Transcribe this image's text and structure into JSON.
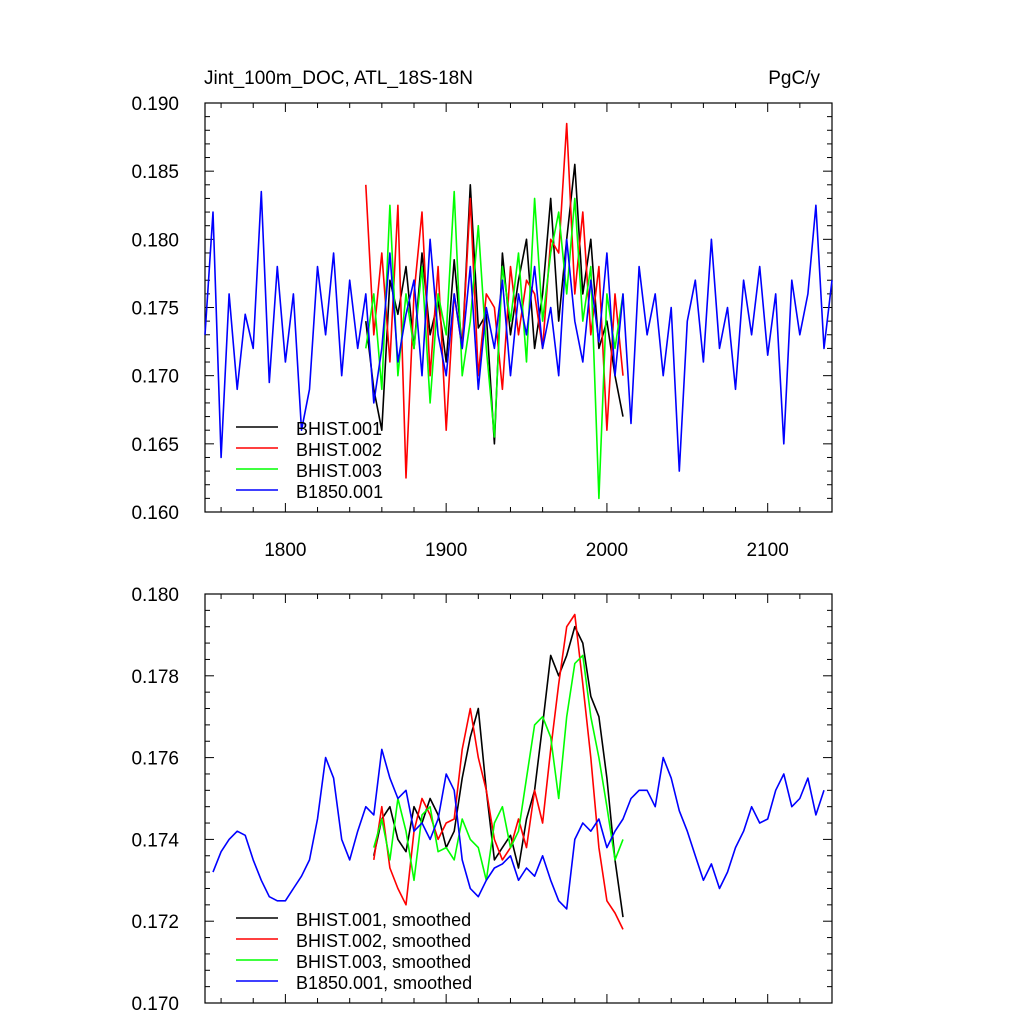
{
  "header": {
    "title": "Jint_100m_DOC, ATL_18S-18N",
    "units": "PgC/y"
  },
  "chart_data": [
    {
      "type": "line",
      "title": "Jint_100m_DOC, ATL_18S-18N",
      "units": "PgC/y",
      "xlim": [
        1750,
        2140
      ],
      "ylim": [
        0.16,
        0.19
      ],
      "xticks": [
        1800,
        1900,
        2000,
        2100
      ],
      "xtick_labels": [
        "1800",
        "1900",
        "2000",
        "2100"
      ],
      "yticks": [
        0.16,
        0.165,
        0.17,
        0.175,
        0.18,
        0.185,
        0.19
      ],
      "ytick_labels": [
        "0.160",
        "0.165",
        "0.170",
        "0.175",
        "0.180",
        "0.185",
        "0.190"
      ],
      "legend_position": "bottom-left",
      "series": [
        {
          "name": "BHIST.001",
          "color": "#000000",
          "x": [
            1850,
            1855,
            1860,
            1865,
            1870,
            1875,
            1880,
            1885,
            1890,
            1895,
            1900,
            1905,
            1910,
            1915,
            1920,
            1925,
            1930,
            1935,
            1940,
            1945,
            1950,
            1955,
            1960,
            1965,
            1970,
            1975,
            1980,
            1985,
            1990,
            1995,
            2000,
            2005,
            2010
          ],
          "values": [
            0.174,
            0.169,
            0.166,
            0.177,
            0.1745,
            0.178,
            0.172,
            0.179,
            0.173,
            0.1755,
            0.171,
            0.1785,
            0.172,
            0.184,
            0.1735,
            0.1745,
            0.165,
            0.179,
            0.173,
            0.177,
            0.18,
            0.172,
            0.176,
            0.183,
            0.174,
            0.18,
            0.1855,
            0.176,
            0.18,
            0.172,
            0.174,
            0.17,
            0.167
          ]
        },
        {
          "name": "BHIST.002",
          "color": "#ff0000",
          "x": [
            1850,
            1855,
            1860,
            1865,
            1870,
            1875,
            1880,
            1885,
            1890,
            1895,
            1900,
            1905,
            1910,
            1915,
            1920,
            1925,
            1930,
            1935,
            1940,
            1945,
            1950,
            1955,
            1960,
            1965,
            1970,
            1975,
            1980,
            1985,
            1990,
            1995,
            2000,
            2005,
            2010
          ],
          "values": [
            0.184,
            0.173,
            0.179,
            0.171,
            0.1825,
            0.1625,
            0.176,
            0.182,
            0.17,
            0.178,
            0.166,
            0.176,
            0.172,
            0.183,
            0.17,
            0.176,
            0.175,
            0.169,
            0.178,
            0.173,
            0.177,
            0.176,
            0.172,
            0.18,
            0.179,
            0.1885,
            0.176,
            0.182,
            0.173,
            0.178,
            0.166,
            0.176,
            0.17
          ]
        },
        {
          "name": "BHIST.003",
          "color": "#00ff00",
          "x": [
            1850,
            1855,
            1860,
            1865,
            1870,
            1875,
            1880,
            1885,
            1890,
            1895,
            1900,
            1905,
            1910,
            1915,
            1920,
            1925,
            1930,
            1935,
            1940,
            1945,
            1950,
            1955,
            1960,
            1965,
            1970,
            1975,
            1980,
            1985,
            1990,
            1995,
            2000,
            2005,
            2010
          ],
          "values": [
            0.172,
            0.176,
            0.169,
            0.1825,
            0.17,
            0.176,
            0.172,
            0.178,
            0.168,
            0.176,
            0.173,
            0.1835,
            0.17,
            0.174,
            0.181,
            0.172,
            0.1655,
            0.178,
            0.174,
            0.179,
            0.171,
            0.183,
            0.174,
            0.179,
            0.182,
            0.176,
            0.183,
            0.174,
            0.178,
            0.161,
            0.176,
            0.172,
            0.176
          ]
        },
        {
          "name": "B1850.001",
          "color": "#0000ff",
          "x": [
            1750,
            1755,
            1760,
            1765,
            1770,
            1775,
            1780,
            1785,
            1790,
            1795,
            1800,
            1805,
            1810,
            1815,
            1820,
            1825,
            1830,
            1835,
            1840,
            1845,
            1850,
            1855,
            1860,
            1865,
            1870,
            1875,
            1880,
            1885,
            1890,
            1895,
            1900,
            1905,
            1910,
            1915,
            1920,
            1925,
            1930,
            1935,
            1940,
            1945,
            1950,
            1955,
            1960,
            1965,
            1970,
            1975,
            1980,
            1985,
            1990,
            1995,
            2000,
            2005,
            2010,
            2015,
            2020,
            2025,
            2030,
            2035,
            2040,
            2045,
            2050,
            2055,
            2060,
            2065,
            2070,
            2075,
            2080,
            2085,
            2090,
            2095,
            2100,
            2105,
            2110,
            2115,
            2120,
            2125,
            2130,
            2135,
            2140
          ],
          "values": [
            0.173,
            0.182,
            0.164,
            0.176,
            0.169,
            0.1745,
            0.172,
            0.1835,
            0.1695,
            0.178,
            0.171,
            0.176,
            0.166,
            0.169,
            0.178,
            0.173,
            0.179,
            0.17,
            0.177,
            0.172,
            0.176,
            0.168,
            0.172,
            0.179,
            0.171,
            0.1745,
            0.177,
            0.17,
            0.18,
            0.173,
            0.17,
            0.176,
            0.172,
            0.178,
            0.169,
            0.175,
            0.172,
            0.177,
            0.17,
            0.176,
            0.173,
            0.178,
            0.172,
            0.175,
            0.17,
            0.18,
            0.174,
            0.171,
            0.177,
            0.1725,
            0.179,
            0.17,
            0.176,
            0.1665,
            0.178,
            0.173,
            0.176,
            0.17,
            0.175,
            0.163,
            0.174,
            0.177,
            0.171,
            0.18,
            0.172,
            0.175,
            0.169,
            0.177,
            0.173,
            0.178,
            0.1715,
            0.176,
            0.165,
            0.177,
            0.173,
            0.176,
            0.1825,
            0.172,
            0.177
          ]
        }
      ]
    },
    {
      "type": "line",
      "xlim": [
        1750,
        2140
      ],
      "ylim": [
        0.17,
        0.18
      ],
      "xticks": [
        1800,
        1900,
        2000,
        2100
      ],
      "yticks": [
        0.17,
        0.172,
        0.174,
        0.176,
        0.178,
        0.18
      ],
      "ytick_labels": [
        "0.170",
        "0.172",
        "0.174",
        "0.176",
        "0.178",
        "0.180"
      ],
      "legend_position": "bottom-left",
      "series": [
        {
          "name": "BHIST.001, smoothed",
          "color": "#000000",
          "x": [
            1855,
            1860,
            1865,
            1870,
            1875,
            1880,
            1885,
            1890,
            1895,
            1900,
            1905,
            1910,
            1915,
            1920,
            1925,
            1930,
            1935,
            1940,
            1945,
            1950,
            1955,
            1960,
            1965,
            1970,
            1975,
            1980,
            1985,
            1990,
            1995,
            2000,
            2005,
            2010
          ],
          "values": [
            0.1736,
            0.1745,
            0.1748,
            0.174,
            0.1737,
            0.1748,
            0.1744,
            0.175,
            0.1746,
            0.1738,
            0.1742,
            0.1755,
            0.1765,
            0.1772,
            0.1752,
            0.1735,
            0.1738,
            0.1741,
            0.1733,
            0.1745,
            0.1752,
            0.1768,
            0.1785,
            0.178,
            0.1785,
            0.1792,
            0.1788,
            0.1775,
            0.177,
            0.1755,
            0.1735,
            0.1721
          ]
        },
        {
          "name": "BHIST.002, smoothed",
          "color": "#ff0000",
          "x": [
            1855,
            1860,
            1865,
            1870,
            1875,
            1880,
            1885,
            1890,
            1895,
            1900,
            1905,
            1910,
            1915,
            1920,
            1925,
            1930,
            1935,
            1940,
            1945,
            1950,
            1955,
            1960,
            1965,
            1970,
            1975,
            1980,
            1985,
            1990,
            1995,
            2000,
            2005,
            2010
          ],
          "values": [
            0.1735,
            0.1748,
            0.1733,
            0.1728,
            0.1724,
            0.1742,
            0.175,
            0.1746,
            0.174,
            0.1744,
            0.1745,
            0.1762,
            0.1772,
            0.176,
            0.1752,
            0.174,
            0.1735,
            0.1738,
            0.1745,
            0.1738,
            0.1752,
            0.1744,
            0.1762,
            0.1778,
            0.1792,
            0.1795,
            0.1778,
            0.176,
            0.1738,
            0.1725,
            0.1722,
            0.1718
          ]
        },
        {
          "name": "BHIST.003, smoothed",
          "color": "#00ff00",
          "x": [
            1855,
            1860,
            1865,
            1870,
            1875,
            1880,
            1885,
            1890,
            1895,
            1900,
            1905,
            1910,
            1915,
            1920,
            1925,
            1930,
            1935,
            1940,
            1945,
            1950,
            1955,
            1960,
            1965,
            1970,
            1975,
            1980,
            1985,
            1990,
            1995,
            2000,
            2005,
            2010
          ],
          "values": [
            0.1738,
            0.1745,
            0.1735,
            0.175,
            0.1742,
            0.173,
            0.1746,
            0.1748,
            0.1737,
            0.1738,
            0.1735,
            0.1745,
            0.174,
            0.1738,
            0.173,
            0.1744,
            0.1748,
            0.1738,
            0.1742,
            0.1755,
            0.1768,
            0.177,
            0.1765,
            0.175,
            0.177,
            0.1783,
            0.1785,
            0.177,
            0.176,
            0.1748,
            0.1735,
            0.174
          ]
        },
        {
          "name": "B1850.001, smoothed",
          "color": "#0000ff",
          "x": [
            1755,
            1760,
            1765,
            1770,
            1775,
            1780,
            1785,
            1790,
            1795,
            1800,
            1805,
            1810,
            1815,
            1820,
            1825,
            1830,
            1835,
            1840,
            1845,
            1850,
            1855,
            1860,
            1865,
            1870,
            1875,
            1880,
            1885,
            1890,
            1895,
            1900,
            1905,
            1910,
            1915,
            1920,
            1925,
            1930,
            1935,
            1940,
            1945,
            1950,
            1955,
            1960,
            1965,
            1970,
            1975,
            1980,
            1985,
            1990,
            1995,
            2000,
            2005,
            2010,
            2015,
            2020,
            2025,
            2030,
            2035,
            2040,
            2045,
            2050,
            2055,
            2060,
            2065,
            2070,
            2075,
            2080,
            2085,
            2090,
            2095,
            2100,
            2105,
            2110,
            2115,
            2120,
            2125,
            2130,
            2135
          ],
          "values": [
            0.1732,
            0.1737,
            0.174,
            0.1742,
            0.1741,
            0.1735,
            0.173,
            0.1726,
            0.1725,
            0.1725,
            0.1728,
            0.1731,
            0.1735,
            0.1745,
            0.176,
            0.1755,
            0.174,
            0.1735,
            0.1742,
            0.1748,
            0.1746,
            0.1762,
            0.1755,
            0.175,
            0.1752,
            0.1742,
            0.1744,
            0.174,
            0.1745,
            0.1756,
            0.1752,
            0.1735,
            0.1728,
            0.1726,
            0.173,
            0.1733,
            0.1734,
            0.1736,
            0.173,
            0.1733,
            0.1731,
            0.1736,
            0.173,
            0.1725,
            0.1723,
            0.174,
            0.1744,
            0.1742,
            0.1745,
            0.1738,
            0.1742,
            0.1745,
            0.175,
            0.1752,
            0.1752,
            0.1748,
            0.176,
            0.1755,
            0.1747,
            0.1742,
            0.1736,
            0.173,
            0.1734,
            0.1728,
            0.1732,
            0.1738,
            0.1742,
            0.1748,
            0.1744,
            0.1745,
            0.1752,
            0.1756,
            0.1748,
            0.175,
            0.1755,
            0.1746,
            0.1752
          ]
        }
      ]
    }
  ]
}
